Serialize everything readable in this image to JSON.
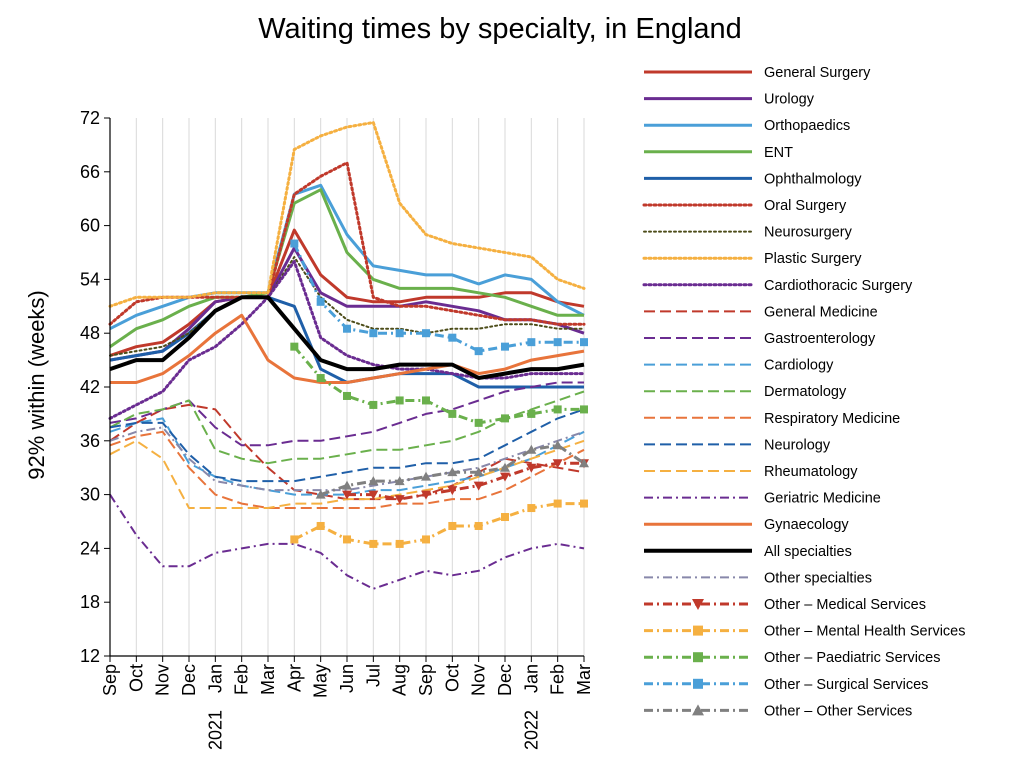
{
  "chart_data": {
    "type": "line",
    "title": "Waiting times by specialty, in England",
    "xlabel": "",
    "ylabel": "92% within (weeks)",
    "ylim": [
      12,
      72
    ],
    "yticks": [
      12,
      18,
      24,
      30,
      36,
      42,
      48,
      54,
      60,
      66,
      72
    ],
    "grid": "vertical",
    "legend_position": "right",
    "categories": [
      "Sep",
      "Oct",
      "Nov",
      "Dec",
      "Jan",
      "Feb",
      "Mar",
      "Apr",
      "May",
      "Jun",
      "Jul",
      "Aug",
      "Sep",
      "Oct",
      "Nov",
      "Dec",
      "Jan",
      "Feb",
      "Mar"
    ],
    "year_labels": [
      {
        "text": "2021",
        "category": "Jan"
      },
      {
        "text": "2022",
        "category": "Jan"
      }
    ],
    "series": [
      {
        "name": "General Surgery",
        "color": "#c0392b",
        "dash": "solid",
        "width": 3,
        "marker": "none",
        "values": [
          45.5,
          46.5,
          47.0,
          49.0,
          51.5,
          52.0,
          52.0,
          59.5,
          54.5,
          52.0,
          51.5,
          51.5,
          52.0,
          52.0,
          52.0,
          52.5,
          52.5,
          51.5,
          51.0
        ]
      },
      {
        "name": "Urology",
        "color": "#6a2c91",
        "dash": "solid",
        "width": 3,
        "marker": "none",
        "values": [
          45.0,
          45.5,
          46.0,
          48.5,
          51.5,
          52.0,
          52.0,
          57.5,
          52.5,
          51.0,
          51.0,
          51.0,
          51.5,
          51.0,
          50.5,
          49.5,
          49.5,
          49.0,
          48.0
        ]
      },
      {
        "name": "Orthopaedics",
        "color": "#4a9fd8",
        "dash": "solid",
        "width": 3,
        "marker": "none",
        "values": [
          48.5,
          50.0,
          51.0,
          52.0,
          52.5,
          52.5,
          52.5,
          63.5,
          64.5,
          59.0,
          55.5,
          55.0,
          54.5,
          54.5,
          53.5,
          54.5,
          54.0,
          51.5,
          50.0
        ]
      },
      {
        "name": "ENT",
        "color": "#6ab04c",
        "dash": "solid",
        "width": 3,
        "marker": "none",
        "values": [
          46.5,
          48.5,
          49.5,
          51.0,
          52.0,
          52.0,
          52.5,
          62.5,
          64.0,
          57.0,
          54.0,
          53.0,
          53.0,
          53.0,
          52.5,
          52.0,
          51.0,
          50.0,
          50.0
        ]
      },
      {
        "name": "Ophthalmology",
        "color": "#1f5fa8",
        "dash": "solid",
        "width": 3,
        "marker": "none",
        "values": [
          45.0,
          45.5,
          46.0,
          48.0,
          50.5,
          52.0,
          52.0,
          51.0,
          44.0,
          42.5,
          43.0,
          43.5,
          43.5,
          43.5,
          42.0,
          42.0,
          42.0,
          42.0,
          42.0
        ]
      },
      {
        "name": "Oral Surgery",
        "color": "#c0392b",
        "dash": "dot",
        "width": 3,
        "marker": "none",
        "values": [
          49.0,
          51.5,
          52.0,
          52.0,
          52.0,
          52.0,
          52.0,
          63.5,
          65.5,
          67.0,
          52.0,
          51.0,
          51.0,
          50.5,
          50.0,
          49.5,
          49.5,
          49.0,
          49.0
        ]
      },
      {
        "name": "Neurosurgery",
        "color": "#4d4d1a",
        "dash": "dot",
        "width": 2,
        "marker": "none",
        "values": [
          45.5,
          46.0,
          46.5,
          48.0,
          50.5,
          52.0,
          52.0,
          56.5,
          52.0,
          49.5,
          48.5,
          48.5,
          48.0,
          48.5,
          48.5,
          49.0,
          49.0,
          48.5,
          48.5
        ]
      },
      {
        "name": "Plastic Surgery",
        "color": "#f5b041",
        "dash": "dot",
        "width": 3,
        "marker": "none",
        "values": [
          51.0,
          52.0,
          52.0,
          52.0,
          52.5,
          52.5,
          52.5,
          68.5,
          70.0,
          71.0,
          71.5,
          62.5,
          59.0,
          58.0,
          57.5,
          57.0,
          56.5,
          54.0,
          53.0
        ]
      },
      {
        "name": "Cardiothoracic Surgery",
        "color": "#6a2c91",
        "dash": "dot",
        "width": 3,
        "marker": "none",
        "values": [
          38.5,
          40.0,
          41.5,
          45.0,
          46.5,
          49.0,
          52.0,
          56.0,
          47.5,
          45.5,
          44.5,
          44.0,
          44.0,
          43.5,
          43.0,
          43.0,
          43.5,
          43.5,
          43.5
        ]
      },
      {
        "name": "General Medicine",
        "color": "#c0392b",
        "dash": "longdash",
        "width": 2,
        "marker": "none",
        "values": [
          36.0,
          38.0,
          39.5,
          40.0,
          39.5,
          36.0,
          33.0,
          30.5,
          30.0,
          29.5,
          29.5,
          29.5,
          30.0,
          31.0,
          32.5,
          34.0,
          33.5,
          33.0,
          32.5
        ]
      },
      {
        "name": "Gastroenterology",
        "color": "#6a2c91",
        "dash": "longdash",
        "width": 2,
        "marker": "none",
        "values": [
          38.0,
          38.5,
          39.5,
          40.5,
          37.5,
          35.5,
          35.5,
          36.0,
          36.0,
          36.5,
          37.0,
          38.0,
          39.0,
          39.5,
          40.5,
          41.5,
          42.0,
          42.5,
          42.5
        ]
      },
      {
        "name": "Cardiology",
        "color": "#4a9fd8",
        "dash": "longdash",
        "width": 2,
        "marker": "none",
        "values": [
          37.0,
          38.0,
          38.5,
          33.5,
          32.0,
          31.0,
          30.5,
          30.0,
          30.0,
          30.0,
          30.5,
          30.5,
          31.0,
          31.5,
          32.0,
          33.0,
          34.0,
          35.5,
          37.0
        ]
      },
      {
        "name": "Dermatology",
        "color": "#6ab04c",
        "dash": "longdash",
        "width": 2,
        "marker": "none",
        "values": [
          37.5,
          39.0,
          39.5,
          40.5,
          35.0,
          34.0,
          33.5,
          34.0,
          34.0,
          34.5,
          35.0,
          35.0,
          35.5,
          36.0,
          37.0,
          38.5,
          39.5,
          40.5,
          41.5
        ]
      },
      {
        "name": "Respiratory Medicine",
        "color": "#e8743b",
        "dash": "longdash",
        "width": 2,
        "marker": "none",
        "values": [
          35.5,
          36.5,
          37.0,
          33.0,
          30.0,
          29.0,
          28.5,
          28.5,
          28.5,
          28.5,
          28.5,
          29.0,
          29.0,
          29.5,
          29.5,
          30.5,
          32.0,
          33.5,
          35.0
        ]
      },
      {
        "name": "Neurology",
        "color": "#1f5fa8",
        "dash": "longdash",
        "width": 2,
        "marker": "none",
        "values": [
          37.5,
          38.0,
          38.0,
          34.5,
          32.0,
          31.5,
          31.5,
          31.5,
          32.0,
          32.5,
          33.0,
          33.0,
          33.5,
          33.5,
          34.0,
          35.5,
          37.0,
          38.5,
          39.5
        ]
      },
      {
        "name": "Rheumatology",
        "color": "#f5b041",
        "dash": "longdash",
        "width": 2,
        "marker": "none",
        "values": [
          34.5,
          36.0,
          34.0,
          28.5,
          28.5,
          28.5,
          28.5,
          29.0,
          29.0,
          29.5,
          29.5,
          30.0,
          30.5,
          31.0,
          32.0,
          33.0,
          34.0,
          35.0,
          36.0
        ]
      },
      {
        "name": "Geriatric Medicine",
        "color": "#6a2c91",
        "dash": "dashdot",
        "width": 2,
        "marker": "none",
        "values": [
          30.0,
          25.5,
          22.0,
          22.0,
          23.5,
          24.0,
          24.5,
          24.5,
          23.5,
          21.0,
          19.5,
          20.5,
          21.5,
          21.0,
          21.5,
          23.0,
          24.0,
          24.5,
          24.0
        ]
      },
      {
        "name": "Gynaecology",
        "color": "#e8743b",
        "dash": "solid",
        "width": 3,
        "marker": "none",
        "values": [
          42.5,
          42.5,
          43.5,
          45.5,
          48.0,
          50.0,
          45.0,
          43.0,
          42.5,
          42.5,
          43.0,
          43.5,
          44.0,
          44.5,
          43.5,
          44.0,
          45.0,
          45.5,
          46.0
        ]
      },
      {
        "name": "All specialties",
        "color": "#000000",
        "dash": "solid",
        "width": 4,
        "marker": "none",
        "values": [
          44.0,
          45.0,
          45.0,
          47.5,
          50.5,
          52.0,
          52.0,
          48.5,
          45.0,
          44.0,
          44.0,
          44.5,
          44.5,
          44.5,
          43.0,
          43.5,
          44.0,
          44.0,
          44.5
        ]
      },
      {
        "name": "Other specialties",
        "color": "#8888aa",
        "dash": "dashdot",
        "width": 2,
        "marker": "none",
        "values": [
          36.0,
          37.0,
          37.5,
          34.0,
          31.5,
          31.0,
          30.5,
          30.5,
          30.5,
          30.5,
          31.0,
          31.5,
          32.0,
          32.5,
          33.0,
          34.0,
          35.0,
          36.0,
          37.0
        ]
      },
      {
        "name": "Other – Medical Services",
        "color": "#c0392b",
        "dash": "dashdot",
        "width": 3,
        "marker": "triangle-down",
        "values": [
          null,
          null,
          null,
          null,
          null,
          null,
          null,
          null,
          null,
          30.0,
          30.0,
          29.5,
          30.0,
          30.5,
          31.0,
          32.0,
          33.0,
          33.5,
          33.5
        ]
      },
      {
        "name": "Other – Mental Health Services",
        "color": "#f5b041",
        "dash": "dashdot",
        "width": 3,
        "marker": "square",
        "values": [
          null,
          null,
          null,
          null,
          null,
          null,
          null,
          25.0,
          26.5,
          25.0,
          24.5,
          24.5,
          25.0,
          26.5,
          26.5,
          27.5,
          28.5,
          29.0,
          29.0
        ]
      },
      {
        "name": "Other – Paediatric Services",
        "color": "#6ab04c",
        "dash": "dashdot",
        "width": 3,
        "marker": "square",
        "values": [
          null,
          null,
          null,
          null,
          null,
          null,
          null,
          46.5,
          43.0,
          41.0,
          40.0,
          40.5,
          40.5,
          39.0,
          38.0,
          38.5,
          39.0,
          39.5,
          39.5
        ]
      },
      {
        "name": "Other – Surgical Services",
        "color": "#4a9fd8",
        "dash": "dashdot",
        "width": 3,
        "marker": "square",
        "values": [
          null,
          null,
          null,
          null,
          null,
          null,
          null,
          58.0,
          51.5,
          48.5,
          48.0,
          48.0,
          48.0,
          47.5,
          46.0,
          46.5,
          47.0,
          47.0,
          47.0
        ]
      },
      {
        "name": "Other – Other Services",
        "color": "#808080",
        "dash": "dashdot",
        "width": 3,
        "marker": "triangle-up",
        "values": [
          null,
          null,
          null,
          null,
          null,
          null,
          null,
          null,
          30.0,
          31.0,
          31.5,
          31.5,
          32.0,
          32.5,
          32.5,
          33.0,
          35.0,
          35.5,
          33.5
        ]
      }
    ]
  }
}
